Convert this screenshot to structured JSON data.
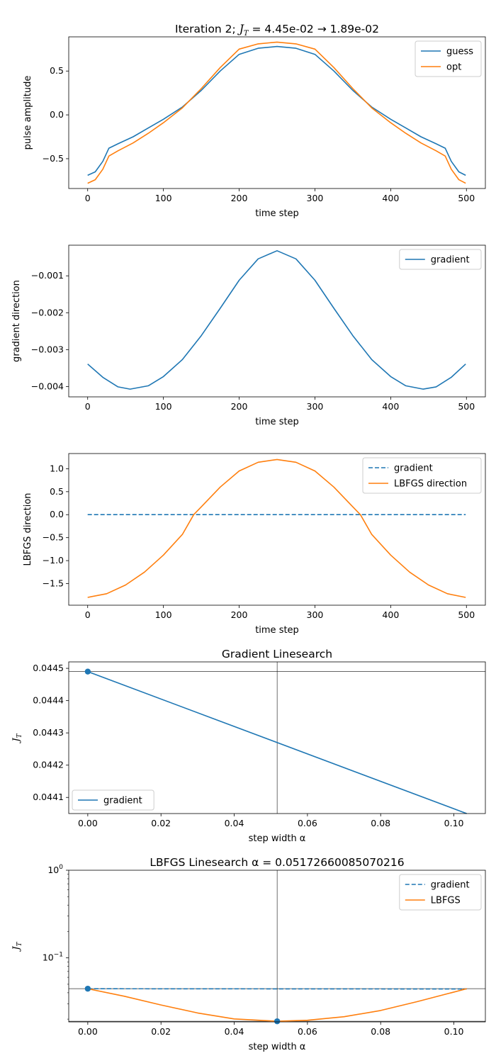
{
  "chart_data": [
    {
      "type": "line",
      "title": "Iteration 2; J_T = 4.45e-02 → 1.89e-02",
      "title_parts": {
        "before": "Iteration 2; ",
        "sym": "J",
        "sub": "T",
        "after": " = 4.45e-02 → 1.89e-02"
      },
      "xlabel": "time step",
      "ylabel": "pulse amplitude",
      "xlim": [
        -25,
        525
      ],
      "ylim": [
        -0.84,
        0.89
      ],
      "xticks": [
        0,
        100,
        200,
        300,
        400,
        500
      ],
      "yticks": [
        0.5,
        0.0,
        -0.5
      ],
      "ytick_labels": [
        "0.5",
        "0.0",
        "−0.5"
      ],
      "legend": "top-right",
      "series": [
        {
          "name": "guess",
          "color": "#1f77b4",
          "style": "solid",
          "x": [
            0,
            10,
            20,
            28,
            40,
            60,
            80,
            100,
            125,
            150,
            175,
            200,
            225,
            250,
            275,
            300,
            325,
            350,
            375,
            400,
            420,
            440,
            460,
            472,
            480,
            490,
            499
          ],
          "y": [
            -0.69,
            -0.65,
            -0.53,
            -0.38,
            -0.33,
            -0.25,
            -0.15,
            -0.05,
            0.09,
            0.28,
            0.5,
            0.69,
            0.76,
            0.78,
            0.76,
            0.69,
            0.5,
            0.28,
            0.09,
            -0.05,
            -0.15,
            -0.25,
            -0.33,
            -0.38,
            -0.53,
            -0.65,
            -0.69
          ]
        },
        {
          "name": "opt",
          "color": "#ff7f0e",
          "style": "solid",
          "x": [
            0,
            10,
            20,
            28,
            40,
            60,
            80,
            100,
            125,
            150,
            175,
            200,
            225,
            250,
            275,
            300,
            325,
            350,
            375,
            400,
            420,
            440,
            460,
            472,
            480,
            490,
            499
          ],
          "y": [
            -0.78,
            -0.74,
            -0.62,
            -0.47,
            -0.41,
            -0.32,
            -0.21,
            -0.09,
            0.08,
            0.3,
            0.54,
            0.75,
            0.81,
            0.83,
            0.81,
            0.75,
            0.54,
            0.3,
            0.08,
            -0.09,
            -0.21,
            -0.32,
            -0.41,
            -0.47,
            -0.62,
            -0.74,
            -0.78
          ]
        }
      ]
    },
    {
      "type": "line",
      "title": "",
      "xlabel": "time step",
      "ylabel": "gradient direction",
      "xlim": [
        -25,
        525
      ],
      "ylim": [
        -0.00428,
        -0.00017
      ],
      "xticks": [
        0,
        100,
        200,
        300,
        400,
        500
      ],
      "yticks": [
        -0.001,
        -0.002,
        -0.003,
        -0.004
      ],
      "ytick_labels": [
        "−0.001",
        "−0.002",
        "−0.003",
        "−0.004"
      ],
      "legend": "top-right",
      "series": [
        {
          "name": "gradient",
          "color": "#1f77b4",
          "style": "solid",
          "x": [
            0,
            20,
            40,
            56,
            80,
            100,
            125,
            150,
            175,
            200,
            225,
            250,
            275,
            300,
            325,
            350,
            375,
            400,
            420,
            443,
            460,
            480,
            499
          ],
          "y": [
            -0.00339,
            -0.00375,
            -0.00401,
            -0.00407,
            -0.00398,
            -0.00373,
            -0.00327,
            -0.00262,
            -0.00188,
            -0.00112,
            -0.00054,
            -0.00032,
            -0.00054,
            -0.00112,
            -0.00188,
            -0.00262,
            -0.00327,
            -0.00373,
            -0.00398,
            -0.00407,
            -0.00401,
            -0.00375,
            -0.00339
          ]
        }
      ]
    },
    {
      "type": "line",
      "title": "",
      "xlabel": "time step",
      "ylabel": "LBFGS direction",
      "xlim": [
        -25,
        525
      ],
      "ylim": [
        -1.97,
        1.33
      ],
      "xticks": [
        0,
        100,
        200,
        300,
        400,
        500
      ],
      "yticks": [
        1.0,
        0.5,
        0.0,
        -0.5,
        -1.0,
        -1.5
      ],
      "ytick_labels": [
        "1.0",
        "0.5",
        "0.0",
        "−0.5",
        "−1.0",
        "−1.5"
      ],
      "legend": "top-right",
      "series": [
        {
          "name": "gradient",
          "color": "#1f77b4",
          "style": "dashed",
          "x": [
            0,
            499
          ],
          "y": [
            0.0,
            0.0
          ]
        },
        {
          "name": "LBFGS direction",
          "color": "#ff7f0e",
          "style": "solid",
          "x": [
            0,
            25,
            50,
            75,
            100,
            125,
            140,
            150,
            175,
            200,
            225,
            250,
            275,
            300,
            325,
            350,
            360,
            375,
            400,
            425,
            450,
            475,
            499
          ],
          "y": [
            -1.8,
            -1.72,
            -1.53,
            -1.25,
            -0.88,
            -0.43,
            0.0,
            0.17,
            0.6,
            0.95,
            1.14,
            1.2,
            1.14,
            0.95,
            0.6,
            0.17,
            0.0,
            -0.43,
            -0.88,
            -1.25,
            -1.53,
            -1.72,
            -1.8
          ]
        }
      ]
    },
    {
      "type": "line",
      "title": "Gradient Linesearch",
      "xlabel": "step width α",
      "ylabel": "J_T",
      "ylabel_parts": {
        "sym": "J",
        "sub": "T"
      },
      "xlim": [
        -0.0052,
        0.1086
      ],
      "ylim": [
        0.04405,
        0.04452
      ],
      "xticks": [
        0.0,
        0.02,
        0.04,
        0.06,
        0.08,
        0.1
      ],
      "xtick_labels": [
        "0.00",
        "0.02",
        "0.04",
        "0.06",
        "0.08",
        "0.10"
      ],
      "yticks": [
        0.0441,
        0.0442,
        0.0443,
        0.0444,
        0.0445
      ],
      "ytick_labels": [
        "0.0441",
        "0.0442",
        "0.0443",
        "0.0444",
        "0.0445"
      ],
      "legend": "bottom-left",
      "series": [
        {
          "name": "gradient",
          "color": "#1f77b4",
          "style": "solid",
          "x": [
            0.0,
            0.1035
          ],
          "y": [
            0.04449,
            0.04405
          ]
        }
      ],
      "markers": [
        {
          "x": 0.0,
          "y": 0.04449,
          "color": "#1f77b4"
        }
      ],
      "vlines": [
        0.05173
      ],
      "hlines": [
        0.04449
      ]
    },
    {
      "type": "line",
      "title": "LBFGS Linesearch α = 0.05172660085070216",
      "xlabel": "step width α",
      "ylabel": "J_T",
      "ylabel_parts": {
        "sym": "J",
        "sub": "T"
      },
      "yscale": "log",
      "xlim": [
        -0.0052,
        0.1086
      ],
      "ylim": [
        0.0186,
        1.0
      ],
      "xticks": [
        0.0,
        0.02,
        0.04,
        0.06,
        0.08,
        0.1
      ],
      "xtick_labels": [
        "0.00",
        "0.02",
        "0.04",
        "0.06",
        "0.08",
        "0.10"
      ],
      "yticks_major": [
        1.0,
        0.1
      ],
      "ytick_labels": [
        "10^0",
        "10^-1"
      ],
      "ytick_label_parts": [
        {
          "base": "10",
          "exp": "0"
        },
        {
          "base": "10",
          "exp": "−1"
        }
      ],
      "legend": "top-right",
      "series": [
        {
          "name": "gradient",
          "color": "#1f77b4",
          "style": "dashed",
          "x": [
            0.0,
            0.1035
          ],
          "y": [
            0.0445,
            0.0441
          ]
        },
        {
          "name": "LBFGS",
          "color": "#ff7f0e",
          "style": "solid",
          "x": [
            0.0,
            0.01,
            0.02,
            0.03,
            0.04,
            0.05173,
            0.06,
            0.07,
            0.08,
            0.09,
            0.1035
          ],
          "y": [
            0.0445,
            0.0365,
            0.029,
            0.0235,
            0.0201,
            0.0189,
            0.0194,
            0.0213,
            0.0251,
            0.0317,
            0.0445
          ]
        }
      ],
      "markers": [
        {
          "x": 0.0,
          "y": 0.0445,
          "color": "#1f77b4"
        },
        {
          "x": 0.05173,
          "y": 0.0189,
          "color": "#1f77b4"
        }
      ],
      "vlines": [
        0.05173
      ],
      "hlines": [
        0.0445,
        0.0189
      ]
    }
  ]
}
